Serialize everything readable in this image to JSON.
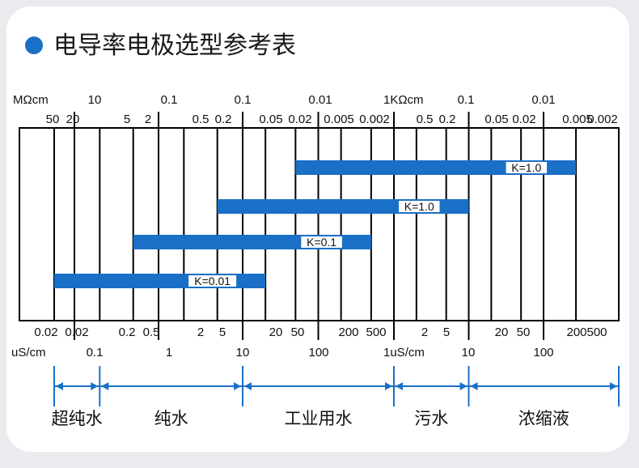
{
  "title": "电导率电极选型参考表",
  "colors": {
    "accent": "#1a6fc7",
    "grid": "#000000",
    "background": "#ffffff",
    "page": "#e9ebee"
  },
  "chart_data": {
    "type": "bar",
    "orientation": "horizontal",
    "top_axis": {
      "unit_left": "MΩcm",
      "unit_mid": "1KΩcm",
      "major_labels": [
        "10",
        "0.1",
        "0.1",
        "0.01",
        "0.1",
        "0.01"
      ],
      "minor_labels": [
        "50",
        "20",
        "5",
        "2",
        "0.5",
        "0.2",
        "0.05",
        "0.02",
        "0.005",
        "0.002",
        "0.5",
        "0.2",
        "0.05",
        "0.02",
        "0.005",
        "0.002"
      ]
    },
    "bottom_axis": {
      "unit_left": "uS/cm",
      "unit_mid": "1uS/cm",
      "minor_labels": [
        "0.02",
        "0.02",
        "0.2",
        "0.5",
        "2",
        "5",
        "20",
        "50",
        "200",
        "500",
        "2",
        "5",
        "20",
        "50",
        "200",
        "500"
      ],
      "major_labels": [
        "0.1",
        "1",
        "10",
        "100",
        "10",
        "100"
      ]
    },
    "grid_conductivity_uScm": [
      0.02,
      0.05,
      0.1,
      0.2,
      0.5,
      1,
      2,
      5,
      10,
      20,
      50,
      100,
      200,
      500,
      1000,
      2000,
      5000,
      10000,
      20000,
      50000,
      100000,
      200000,
      500000
    ],
    "bars": [
      {
        "label": "K=1.0",
        "min_uScm": 50,
        "max_uScm": 200000
      },
      {
        "label": "K=1.0",
        "min_uScm": 5,
        "max_uScm": 10000
      },
      {
        "label": "K=0.1",
        "min_uScm": 0.5,
        "max_uScm": 500
      },
      {
        "label": "K=0.01",
        "min_uScm": 0.05,
        "max_uScm": 20
      }
    ],
    "ranges": [
      {
        "label": "超纯水",
        "min_uScm": 0.05,
        "max_uScm": 0.2
      },
      {
        "label": "纯水",
        "min_uScm": 0.2,
        "max_uScm": 10
      },
      {
        "label": "工业用水",
        "min_uScm": 10,
        "max_uScm": 1000
      },
      {
        "label": "污水",
        "min_uScm": 1000,
        "max_uScm": 10000
      },
      {
        "label": "浓缩液",
        "min_uScm": 10000,
        "max_uScm": 500000
      }
    ],
    "scale": "log"
  }
}
